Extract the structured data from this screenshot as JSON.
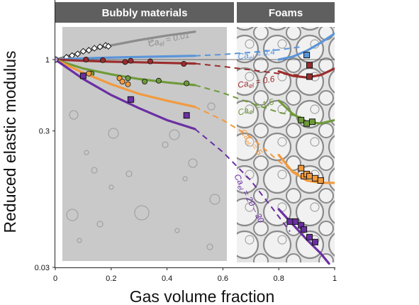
{
  "chart_data": {
    "type": "line",
    "xlabel": "Gas volume fraction",
    "ylabel": "Reduced elastic modulus",
    "xlim": [
      0,
      1
    ],
    "ylim": [
      0.03,
      2.1
    ],
    "yscale": "log",
    "x_ticks": [
      "0",
      "0.2",
      "0.4",
      "0.6",
      "0.8",
      "1"
    ],
    "x_tick_values": [
      0,
      0.2,
      0.4,
      0.6,
      0.8,
      1
    ],
    "y_ticks": [
      "1",
      "0.3",
      "0.03"
    ],
    "y_tick_values": [
      1,
      0.3,
      0.03
    ],
    "panels": [
      {
        "title": "Bubbly materials",
        "x_range": [
          0,
          0.64
        ]
      },
      {
        "title": "Foams",
        "x_range": [
          0.64,
          1
        ]
      }
    ],
    "reference_line_y": 1,
    "origin_point": {
      "x": 0,
      "y": 1
    },
    "series": [
      {
        "label_main": "Ca",
        "label_sub": "el",
        "label_rest": " = 0.01",
        "color": "#8c8c8c",
        "solid": [
          [
            0,
            1
          ],
          [
            0.1,
            1.14
          ],
          [
            0.2,
            1.27
          ],
          [
            0.3,
            1.39
          ],
          [
            0.4,
            1.5
          ],
          [
            0.5,
            1.6
          ]
        ],
        "dashed": [],
        "foam": [],
        "points": [
          [
            0.04,
            1.04
          ],
          [
            0.06,
            1.07
          ],
          [
            0.08,
            1.1
          ],
          [
            0.1,
            1.15
          ],
          [
            0.12,
            1.17
          ],
          [
            0.14,
            1.21
          ],
          [
            0.16,
            1.24
          ],
          [
            0.18,
            1.27
          ],
          [
            0.19,
            1.25
          ]
        ],
        "marker": "diamond"
      },
      {
        "label_main": "Ca",
        "label_sub": "el",
        "label_rest": " = 0.4",
        "color": "#5b95d9",
        "solid": [
          [
            0,
            1
          ],
          [
            0.1,
            1.02
          ],
          [
            0.2,
            1.035
          ],
          [
            0.3,
            1.045
          ],
          [
            0.4,
            1.055
          ],
          [
            0.5,
            1.065
          ]
        ],
        "dashed": [
          [
            0.5,
            1.065
          ],
          [
            0.6,
            1.09
          ],
          [
            0.7,
            1.13
          ],
          [
            0.8,
            1.18
          ],
          [
            0.88,
            1.24
          ]
        ],
        "foam": [
          [
            0.8,
            1.0
          ],
          [
            0.85,
            1.05
          ],
          [
            0.9,
            1.16
          ],
          [
            0.95,
            1.33
          ],
          [
            1.0,
            1.55
          ]
        ],
        "points": [
          [
            0.9,
            1.08
          ]
        ],
        "marker": "square"
      },
      {
        "label_main": "Ca",
        "label_sub": "el",
        "label_rest": " = 0.6",
        "color": "#9b2d2d",
        "solid": [
          [
            0,
            1
          ],
          [
            0.1,
            0.98
          ],
          [
            0.2,
            0.965
          ],
          [
            0.3,
            0.955
          ],
          [
            0.4,
            0.945
          ],
          [
            0.5,
            0.935
          ]
        ],
        "dashed": [
          [
            0.5,
            0.935
          ],
          [
            0.6,
            0.89
          ],
          [
            0.7,
            0.84
          ],
          [
            0.8,
            0.79
          ],
          [
            0.87,
            0.77
          ]
        ],
        "foam": [
          [
            0.8,
            0.82
          ],
          [
            0.85,
            0.76
          ],
          [
            0.9,
            0.74
          ],
          [
            0.95,
            0.77
          ],
          [
            1.0,
            0.86
          ]
        ],
        "points": [
          [
            0.11,
            1.0
          ],
          [
            0.17,
            0.99
          ],
          [
            0.25,
            0.96
          ],
          [
            0.27,
            0.98
          ],
          [
            0.34,
            0.97
          ],
          [
            0.46,
            0.93
          ],
          [
            0.91,
            0.91
          ],
          [
            0.91,
            0.75
          ]
        ],
        "marker": "circle"
      },
      {
        "label_main": "Ca",
        "label_sub": "el",
        "label_rest": " = 1.5",
        "color": "#6f9a3a",
        "solid": [
          [
            0,
            1
          ],
          [
            0.1,
            0.86
          ],
          [
            0.2,
            0.78
          ],
          [
            0.3,
            0.72
          ],
          [
            0.4,
            0.68
          ],
          [
            0.5,
            0.65
          ]
        ],
        "dashed": [
          [
            0.5,
            0.65
          ],
          [
            0.6,
            0.57
          ],
          [
            0.7,
            0.48
          ],
          [
            0.8,
            0.41
          ],
          [
            0.88,
            0.38
          ]
        ],
        "foam": [
          [
            0.8,
            0.5
          ],
          [
            0.85,
            0.4
          ],
          [
            0.9,
            0.35
          ],
          [
            0.95,
            0.34
          ],
          [
            1.0,
            0.36
          ]
        ],
        "points": [
          [
            0.13,
            0.79
          ],
          [
            0.26,
            0.73
          ],
          [
            0.32,
            0.69
          ],
          [
            0.37,
            0.7
          ],
          [
            0.47,
            0.67
          ],
          [
            0.88,
            0.36
          ],
          [
            0.9,
            0.34
          ],
          [
            0.92,
            0.35
          ]
        ],
        "marker": "circle"
      },
      {
        "label_main": "Ca",
        "label_sub": "el",
        "label_rest": " = 5",
        "color": "#f29a3e",
        "solid": [
          [
            0,
            1
          ],
          [
            0.1,
            0.8
          ],
          [
            0.2,
            0.66
          ],
          [
            0.3,
            0.56
          ],
          [
            0.4,
            0.5
          ],
          [
            0.5,
            0.45
          ]
        ],
        "dashed": [
          [
            0.5,
            0.45
          ],
          [
            0.6,
            0.36
          ],
          [
            0.7,
            0.27
          ],
          [
            0.8,
            0.18
          ],
          [
            0.88,
            0.14
          ]
        ],
        "foam": [
          [
            0.8,
            0.2
          ],
          [
            0.85,
            0.15
          ],
          [
            0.9,
            0.13
          ],
          [
            0.95,
            0.125
          ],
          [
            1.0,
            0.125
          ]
        ],
        "points": [
          [
            0.12,
            0.79
          ],
          [
            0.23,
            0.73
          ],
          [
            0.24,
            0.69
          ],
          [
            0.26,
            0.66
          ],
          [
            0.88,
            0.16
          ],
          [
            0.89,
            0.14
          ],
          [
            0.9,
            0.145
          ],
          [
            0.91,
            0.14
          ],
          [
            0.93,
            0.135
          ],
          [
            0.95,
            0.13
          ]
        ],
        "marker": "circle"
      },
      {
        "label_main": "Ca",
        "label_sub": "el",
        "label_rest": " = 20 – 30",
        "color": "#6b2fa3",
        "solid": [
          [
            0,
            1
          ],
          [
            0.1,
            0.72
          ],
          [
            0.2,
            0.55
          ],
          [
            0.3,
            0.44
          ],
          [
            0.4,
            0.36
          ],
          [
            0.5,
            0.31
          ]
        ],
        "dashed": [
          [
            0.5,
            0.31
          ],
          [
            0.6,
            0.21
          ],
          [
            0.7,
            0.13
          ],
          [
            0.78,
            0.08
          ],
          [
            0.84,
            0.055
          ]
        ],
        "foam": [
          [
            0.8,
            0.08
          ],
          [
            0.85,
            0.062
          ],
          [
            0.9,
            0.048
          ],
          [
            0.95,
            0.038
          ],
          [
            0.98,
            0.032
          ]
        ],
        "points": [
          [
            0.1,
            0.76
          ],
          [
            0.27,
            0.51
          ],
          [
            0.47,
            0.39
          ],
          [
            0.84,
            0.065
          ],
          [
            0.86,
            0.065
          ],
          [
            0.88,
            0.061
          ],
          [
            0.89,
            0.057
          ],
          [
            0.91,
            0.05
          ],
          [
            0.93,
            0.046
          ]
        ],
        "marker": "square"
      }
    ]
  }
}
